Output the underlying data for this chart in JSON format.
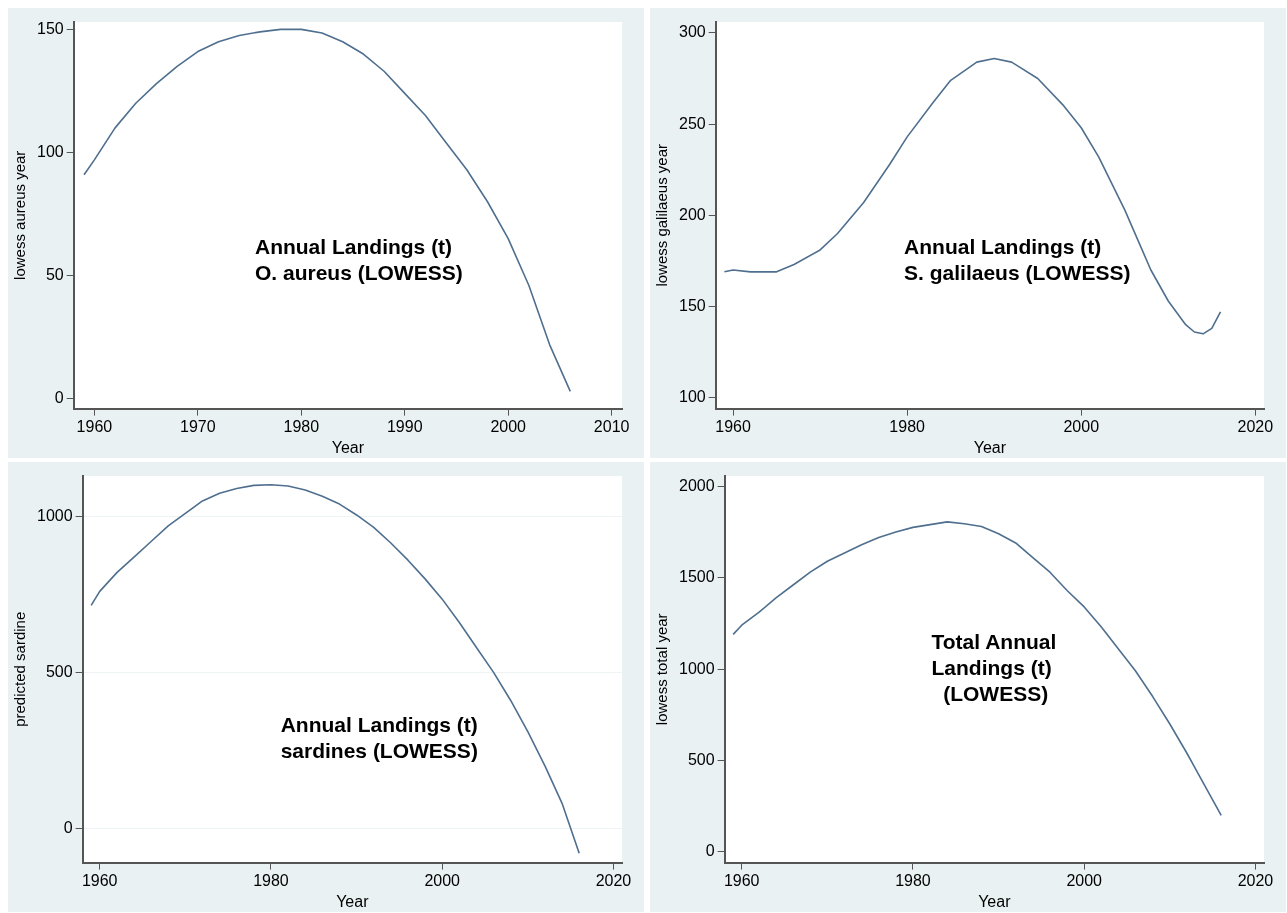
{
  "chart_data": [
    {
      "type": "line",
      "xlabel": "Year",
      "ylabel": "lowess aureus year",
      "annotations": [
        "Annual Landings (t)\nO. aureus (LOWESS)"
      ],
      "xlim": [
        1958,
        2011
      ],
      "xticks": [
        1960,
        1970,
        1980,
        1990,
        2000,
        2010
      ],
      "ylim": [
        -4,
        153
      ],
      "yticks": [
        0,
        50,
        100,
        150
      ],
      "legend": false,
      "marker": "none",
      "line_style": "solid",
      "x": [
        1959,
        1960,
        1962,
        1964,
        1966,
        1968,
        1970,
        1972,
        1974,
        1976,
        1978,
        1980,
        1982,
        1984,
        1986,
        1988,
        1990,
        1992,
        1994,
        1996,
        1998,
        2000,
        2002,
        2004,
        2006
      ],
      "series": [
        {
          "color": "#4f6f8f",
          "values": [
            91,
            97,
            110,
            120,
            128,
            135,
            141,
            145,
            147.5,
            149,
            150,
            150,
            148.5,
            145,
            140,
            133,
            124,
            115,
            104,
            93,
            80,
            65,
            46,
            22,
            3
          ]
        }
      ]
    },
    {
      "type": "line",
      "xlabel": "Year",
      "ylabel": "lowess galilaeus year",
      "annotations": [
        "Annual Landings (t)\nS. galilaeus (LOWESS)"
      ],
      "xlim": [
        1958,
        2021
      ],
      "xticks": [
        1960,
        1980,
        2000,
        2020
      ],
      "ylim": [
        94,
        306
      ],
      "yticks": [
        100,
        150,
        200,
        250,
        300
      ],
      "legend": false,
      "marker": "none",
      "line_style": "solid",
      "x": [
        1959,
        1960,
        1962,
        1965,
        1967,
        1970,
        1972,
        1975,
        1978,
        1980,
        1983,
        1985,
        1988,
        1990,
        1992,
        1995,
        1998,
        2000,
        2002,
        2005,
        2008,
        2010,
        2012,
        2013,
        2014,
        2015,
        2016
      ],
      "series": [
        {
          "color": "#4f6f8f",
          "values": [
            169,
            170,
            169,
            169,
            173,
            181,
            190,
            207,
            228,
            243,
            262,
            274,
            284,
            286,
            284,
            275,
            260,
            248,
            232,
            203,
            170,
            153,
            140,
            136,
            135,
            138,
            147
          ]
        }
      ]
    },
    {
      "type": "line",
      "xlabel": "Year",
      "ylabel": "predicted sardine",
      "annotations": [
        "Annual Landings (t)\nsardines (LOWESS)"
      ],
      "xlim": [
        1958,
        2021
      ],
      "xticks": [
        1960,
        1980,
        2000,
        2020
      ],
      "ylim": [
        -110,
        1130
      ],
      "yticks": [
        0,
        500,
        1000
      ],
      "grid": "y",
      "legend": false,
      "marker": "none",
      "line_style": "solid",
      "x": [
        1959,
        1960,
        1962,
        1964,
        1966,
        1968,
        1970,
        1972,
        1974,
        1976,
        1978,
        1980,
        1982,
        1984,
        1986,
        1988,
        1990,
        1992,
        1994,
        1996,
        1998,
        2000,
        2002,
        2004,
        2006,
        2008,
        2010,
        2012,
        2014,
        2016
      ],
      "series": [
        {
          "color": "#4f6f8f",
          "values": [
            715,
            760,
            820,
            870,
            920,
            970,
            1010,
            1050,
            1075,
            1090,
            1100,
            1102,
            1098,
            1085,
            1065,
            1040,
            1005,
            965,
            915,
            860,
            800,
            735,
            660,
            580,
            500,
            410,
            310,
            200,
            80,
            -80
          ]
        }
      ]
    },
    {
      "type": "line",
      "xlabel": "Year",
      "ylabel": "lowess total year",
      "annotations": [
        "Total Annual\nLandings (t)\n  (LOWESS)"
      ],
      "xlim": [
        1958,
        2021
      ],
      "xticks": [
        1960,
        1980,
        2000,
        2020
      ],
      "ylim": [
        -58,
        2056
      ],
      "yticks": [
        0,
        500,
        1000,
        1500,
        2000
      ],
      "legend": false,
      "marker": "none",
      "line_style": "solid",
      "x": [
        1959,
        1960,
        1962,
        1964,
        1966,
        1968,
        1970,
        1972,
        1974,
        1976,
        1978,
        1980,
        1982,
        1984,
        1986,
        1988,
        1990,
        1992,
        1994,
        1996,
        1998,
        2000,
        2002,
        2004,
        2006,
        2008,
        2010,
        2012,
        2014,
        2016
      ],
      "series": [
        {
          "color": "#4f6f8f",
          "values": [
            1190,
            1240,
            1310,
            1390,
            1460,
            1530,
            1590,
            1635,
            1680,
            1720,
            1750,
            1775,
            1790,
            1805,
            1795,
            1780,
            1740,
            1690,
            1610,
            1530,
            1430,
            1340,
            1230,
            1110,
            990,
            850,
            700,
            540,
            370,
            200
          ]
        }
      ]
    }
  ]
}
